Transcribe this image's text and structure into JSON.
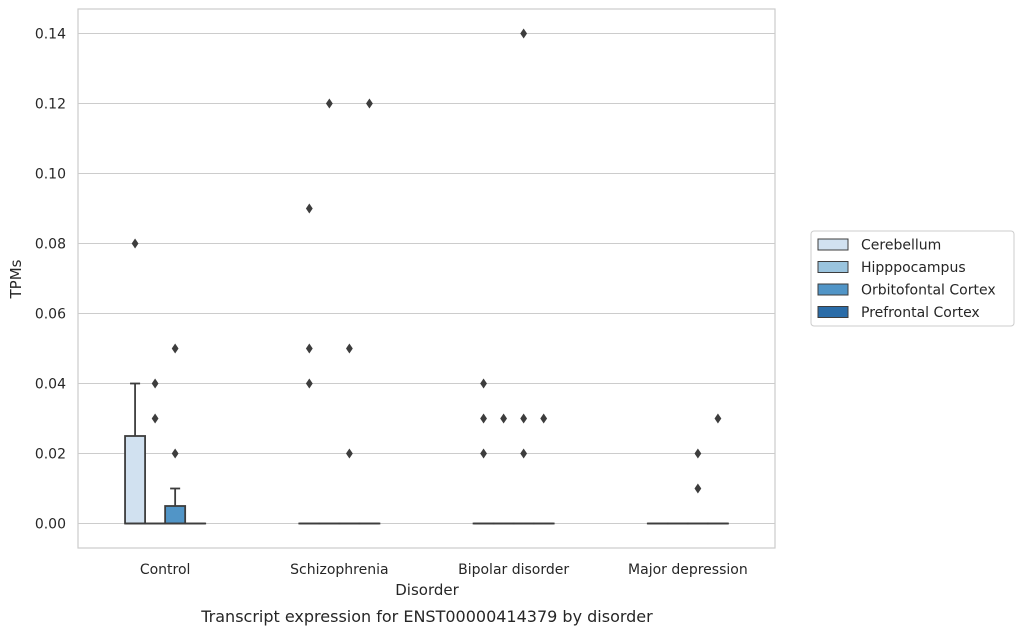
{
  "chart_data": {
    "type": "box",
    "caption": "Transcript expression for ENST00000414379 by disorder",
    "xlabel": "Disorder",
    "ylabel": "TPMs",
    "ylim": [
      -0.007,
      0.147
    ],
    "yticks": [
      0.0,
      0.02,
      0.04,
      0.06,
      0.08,
      0.1,
      0.12,
      0.14
    ],
    "ytick_labels": [
      "0.00",
      "0.02",
      "0.04",
      "0.06",
      "0.08",
      "0.10",
      "0.12",
      "0.14"
    ],
    "grid": "horizontal",
    "legend_placement": "outside-right",
    "categories": [
      "Control",
      "Schizophrenia",
      "Bipolar disorder",
      "Major depression"
    ],
    "series": [
      {
        "name": "Cerebellum",
        "color": "#d1e1f0",
        "boxes": [
          {
            "q1": 0.0,
            "median": 0.0,
            "q3": 0.025,
            "whisker_low": 0.0,
            "whisker_high": 0.04,
            "outliers": [
              0.08
            ]
          },
          {
            "q1": 0.0,
            "median": 0.0,
            "q3": 0.0,
            "whisker_low": 0.0,
            "whisker_high": 0.0,
            "outliers": [
              0.09,
              0.05,
              0.04
            ]
          },
          {
            "q1": 0.0,
            "median": 0.0,
            "q3": 0.0,
            "whisker_low": 0.0,
            "whisker_high": 0.0,
            "outliers": [
              0.04,
              0.03,
              0.02
            ]
          },
          {
            "q1": 0.0,
            "median": 0.0,
            "q3": 0.0,
            "whisker_low": 0.0,
            "whisker_high": 0.0,
            "outliers": []
          }
        ]
      },
      {
        "name": "Hipppocampus",
        "color": "#9ac4de",
        "boxes": [
          {
            "q1": 0.0,
            "median": 0.0,
            "q3": 0.0,
            "whisker_low": 0.0,
            "whisker_high": 0.0,
            "outliers": [
              0.04,
              0.03
            ]
          },
          {
            "q1": 0.0,
            "median": 0.0,
            "q3": 0.0,
            "whisker_low": 0.0,
            "whisker_high": 0.0,
            "outliers": [
              0.12
            ]
          },
          {
            "q1": 0.0,
            "median": 0.0,
            "q3": 0.0,
            "whisker_low": 0.0,
            "whisker_high": 0.0,
            "outliers": [
              0.03
            ]
          },
          {
            "q1": 0.0,
            "median": 0.0,
            "q3": 0.0,
            "whisker_low": 0.0,
            "whisker_high": 0.0,
            "outliers": []
          }
        ]
      },
      {
        "name": "Orbitofontal Cortex",
        "color": "#5195c7",
        "boxes": [
          {
            "q1": 0.0,
            "median": 0.0,
            "q3": 0.005,
            "whisker_low": 0.0,
            "whisker_high": 0.01,
            "outliers": [
              0.05,
              0.02
            ]
          },
          {
            "q1": 0.0,
            "median": 0.0,
            "q3": 0.0,
            "whisker_low": 0.0,
            "whisker_high": 0.0,
            "outliers": [
              0.05,
              0.02
            ]
          },
          {
            "q1": 0.0,
            "median": 0.0,
            "q3": 0.0,
            "whisker_low": 0.0,
            "whisker_high": 0.0,
            "outliers": [
              0.14,
              0.03,
              0.02
            ]
          },
          {
            "q1": 0.0,
            "median": 0.0,
            "q3": 0.0,
            "whisker_low": 0.0,
            "whisker_high": 0.0,
            "outliers": [
              0.02,
              0.01
            ]
          }
        ]
      },
      {
        "name": "Prefrontal Cortex",
        "color": "#2a6ca8",
        "boxes": [
          {
            "q1": 0.0,
            "median": 0.0,
            "q3": 0.0,
            "whisker_low": 0.0,
            "whisker_high": 0.0,
            "outliers": []
          },
          {
            "q1": 0.0,
            "median": 0.0,
            "q3": 0.0,
            "whisker_low": 0.0,
            "whisker_high": 0.0,
            "outliers": [
              0.12
            ]
          },
          {
            "q1": 0.0,
            "median": 0.0,
            "q3": 0.0,
            "whisker_low": 0.0,
            "whisker_high": 0.0,
            "outliers": [
              0.03
            ]
          },
          {
            "q1": 0.0,
            "median": 0.0,
            "q3": 0.0,
            "whisker_low": 0.0,
            "whisker_high": 0.0,
            "outliers": [
              0.03
            ]
          }
        ]
      }
    ]
  }
}
